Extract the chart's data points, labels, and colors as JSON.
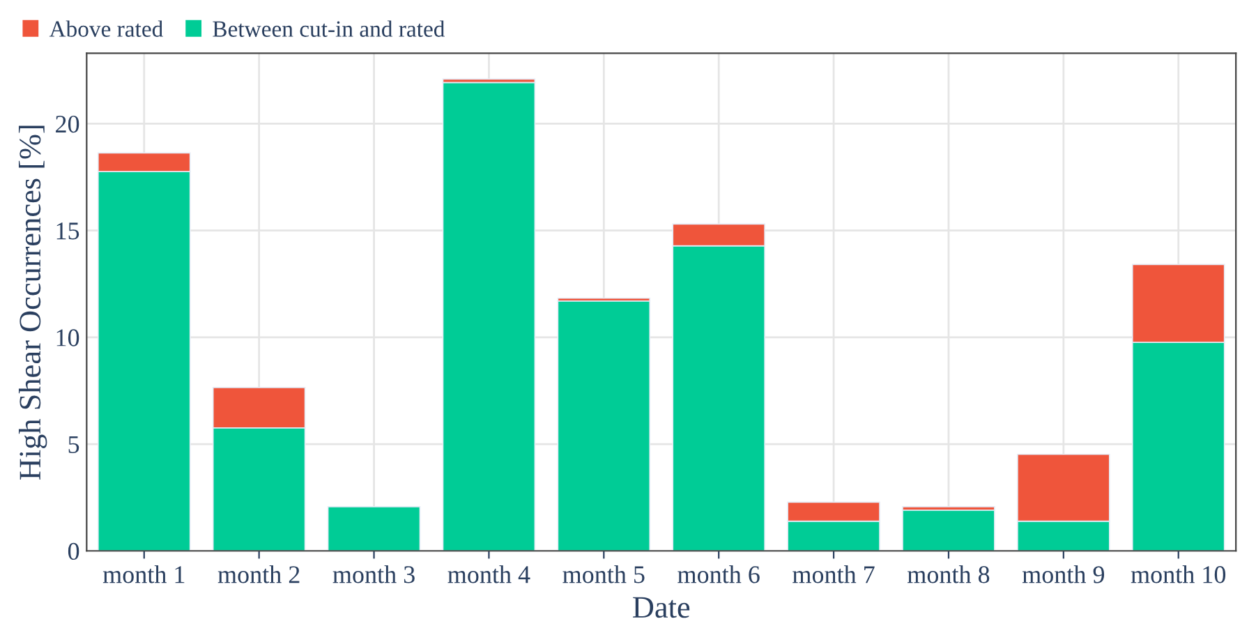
{
  "chart_data": {
    "type": "bar",
    "stacked": true,
    "xlabel": "Date",
    "ylabel": "High Shear Occurrences [%]",
    "categories": [
      "month 1",
      "month 2",
      "month 3",
      "month 4",
      "month 5",
      "month 6",
      "month 7",
      "month 8",
      "month 9",
      "month 10"
    ],
    "series": [
      {
        "name": "Between cut-in and rated",
        "color": "#00cc96",
        "values": [
          17.76,
          5.76,
          2.07,
          21.93,
          11.7,
          14.28,
          1.39,
          1.91,
          1.39,
          9.76
        ]
      },
      {
        "name": "Above rated",
        "color": "#ef553b",
        "values": [
          0.87,
          1.89,
          null,
          0.16,
          0.13,
          1.02,
          0.89,
          0.16,
          3.13,
          3.65
        ]
      }
    ],
    "ylim": [
      0,
      23.3
    ],
    "yticks": [
      0,
      5,
      10,
      15,
      20
    ],
    "grid": true,
    "legend": "top left"
  }
}
